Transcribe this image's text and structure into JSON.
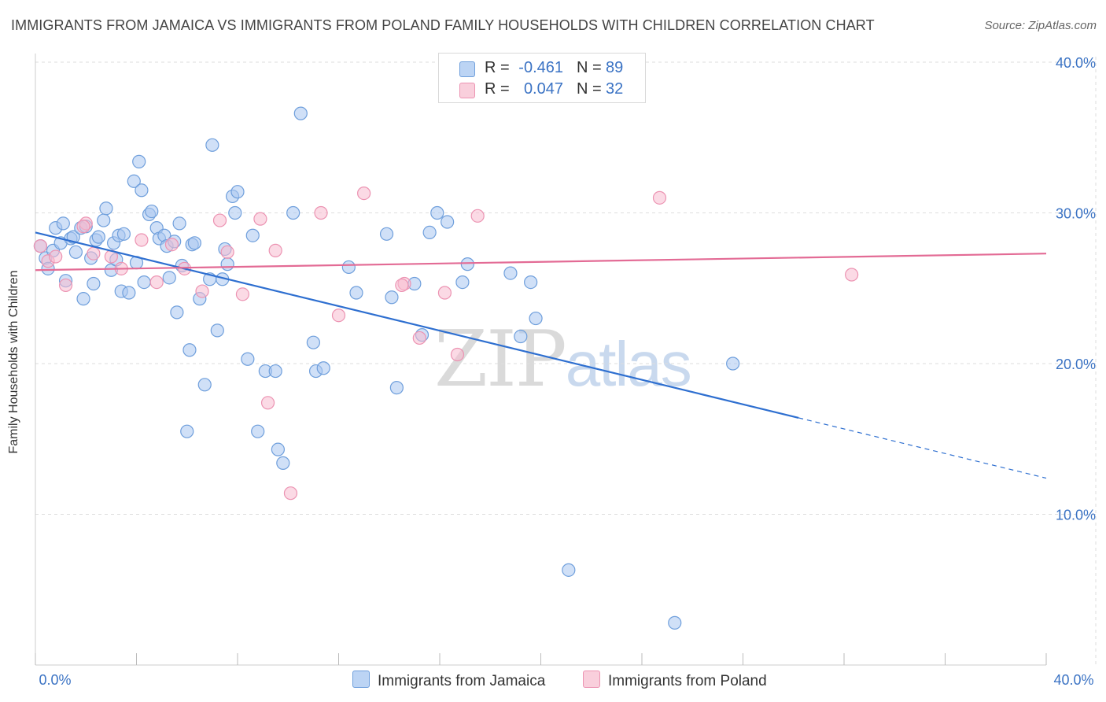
{
  "title": "IMMIGRANTS FROM JAMAICA VS IMMIGRANTS FROM POLAND FAMILY HOUSEHOLDS WITH CHILDREN CORRELATION CHART",
  "source": "Source: ZipAtlas.com",
  "watermark": {
    "zip": "ZIP",
    "atlas": "atlas"
  },
  "legend": {
    "rows": [
      {
        "r_label": "R =",
        "r_value": "-0.461",
        "n_label": "N =",
        "n_value": "89"
      },
      {
        "r_label": "R =",
        "r_value": "0.047",
        "n_label": "N =",
        "n_value": "32"
      }
    ]
  },
  "colors": {
    "jamaica_fill": "#a9c6f0",
    "jamaica_stroke": "#6f9fdc",
    "jamaica_line": "#2e6fd0",
    "poland_fill": "#f7bcd0",
    "poland_stroke": "#ec93b2",
    "poland_line": "#e36b95",
    "tick_label": "#3b73c4",
    "grid": "#dddddd"
  },
  "chart_data": {
    "type": "scatter",
    "title": "IMMIGRANTS FROM JAMAICA VS IMMIGRANTS FROM POLAND FAMILY HOUSEHOLDS WITH CHILDREN CORRELATION CHART",
    "xlabel": "",
    "ylabel": "Family Households with Children",
    "xlim": [
      0,
      40
    ],
    "ylim": [
      0,
      42
    ],
    "x_tick_labels": [
      {
        "value": 0,
        "label": "0.0%"
      },
      {
        "value": 40,
        "label": "40.0%"
      }
    ],
    "y_ticks": [
      {
        "value": 10,
        "label": "10.0%"
      },
      {
        "value": 20,
        "label": "20.0%"
      },
      {
        "value": 30,
        "label": "30.0%"
      },
      {
        "value": 40,
        "label": "40.0%"
      }
    ],
    "grid": true,
    "legend_position": "bottom",
    "series": [
      {
        "name": "Immigrants from Jamaica",
        "trend": {
          "x0": 0,
          "y0": 28.7,
          "x1": 30.2,
          "y1": 16.4,
          "dash_x1": 40,
          "dash_y1": 12.4
        },
        "points": [
          [
            0.2,
            27.8
          ],
          [
            0.4,
            27.0
          ],
          [
            0.5,
            26.3
          ],
          [
            0.7,
            27.5
          ],
          [
            0.8,
            29.0
          ],
          [
            1.0,
            28.0
          ],
          [
            1.1,
            29.3
          ],
          [
            1.2,
            25.5
          ],
          [
            1.4,
            28.3
          ],
          [
            1.5,
            28.4
          ],
          [
            1.6,
            27.4
          ],
          [
            1.8,
            29.0
          ],
          [
            1.9,
            24.3
          ],
          [
            2.0,
            29.1
          ],
          [
            2.2,
            27.0
          ],
          [
            2.3,
            25.3
          ],
          [
            2.4,
            28.2
          ],
          [
            2.5,
            28.4
          ],
          [
            2.7,
            29.5
          ],
          [
            2.8,
            30.3
          ],
          [
            3.0,
            26.2
          ],
          [
            3.1,
            28.0
          ],
          [
            3.2,
            26.9
          ],
          [
            3.3,
            28.5
          ],
          [
            3.4,
            24.8
          ],
          [
            3.5,
            28.6
          ],
          [
            3.7,
            24.7
          ],
          [
            3.9,
            32.1
          ],
          [
            4.0,
            26.7
          ],
          [
            4.1,
            33.4
          ],
          [
            4.2,
            31.5
          ],
          [
            4.3,
            25.4
          ],
          [
            4.5,
            29.9
          ],
          [
            4.6,
            30.1
          ],
          [
            4.8,
            29.0
          ],
          [
            4.9,
            28.3
          ],
          [
            5.1,
            28.5
          ],
          [
            5.2,
            27.8
          ],
          [
            5.3,
            25.7
          ],
          [
            5.5,
            28.1
          ],
          [
            5.6,
            23.4
          ],
          [
            5.7,
            29.3
          ],
          [
            5.8,
            26.5
          ],
          [
            6.1,
            20.9
          ],
          [
            6.2,
            27.9
          ],
          [
            6.3,
            28.0
          ],
          [
            6.5,
            24.3
          ],
          [
            6.7,
            18.6
          ],
          [
            6.9,
            25.6
          ],
          [
            7.0,
            34.5
          ],
          [
            7.2,
            22.2
          ],
          [
            7.4,
            25.6
          ],
          [
            7.5,
            27.6
          ],
          [
            7.6,
            26.6
          ],
          [
            7.8,
            31.1
          ],
          [
            7.9,
            30.0
          ],
          [
            8.0,
            31.4
          ],
          [
            8.4,
            20.3
          ],
          [
            8.6,
            28.5
          ],
          [
            8.8,
            15.5
          ],
          [
            9.1,
            19.5
          ],
          [
            9.5,
            19.5
          ],
          [
            9.6,
            14.3
          ],
          [
            9.8,
            13.4
          ],
          [
            10.2,
            30.0
          ],
          [
            10.5,
            36.6
          ],
          [
            11.0,
            21.4
          ],
          [
            11.1,
            19.5
          ],
          [
            11.4,
            19.7
          ],
          [
            12.4,
            26.4
          ],
          [
            12.7,
            24.7
          ],
          [
            13.9,
            28.6
          ],
          [
            14.1,
            24.4
          ],
          [
            14.3,
            18.4
          ],
          [
            15.0,
            25.3
          ],
          [
            15.3,
            21.9
          ],
          [
            15.6,
            28.7
          ],
          [
            15.9,
            30.0
          ],
          [
            16.3,
            29.4
          ],
          [
            16.9,
            25.4
          ],
          [
            17.1,
            26.6
          ],
          [
            18.8,
            26.0
          ],
          [
            19.2,
            21.8
          ],
          [
            19.6,
            25.4
          ],
          [
            19.8,
            23.0
          ],
          [
            21.1,
            6.3
          ],
          [
            25.3,
            2.8
          ],
          [
            27.6,
            20.0
          ],
          [
            6.0,
            15.5
          ]
        ]
      },
      {
        "name": "Immigrants from Poland",
        "trend": {
          "x0": 0,
          "y0": 26.2,
          "x1": 40,
          "y1": 27.3
        },
        "points": [
          [
            0.2,
            27.8
          ],
          [
            0.5,
            26.8
          ],
          [
            0.8,
            27.1
          ],
          [
            1.2,
            25.2
          ],
          [
            2.0,
            29.3
          ],
          [
            2.3,
            27.3
          ],
          [
            3.0,
            27.1
          ],
          [
            3.4,
            26.3
          ],
          [
            4.2,
            28.2
          ],
          [
            4.8,
            25.4
          ],
          [
            5.4,
            27.9
          ],
          [
            6.6,
            24.8
          ],
          [
            7.6,
            27.4
          ],
          [
            8.2,
            24.6
          ],
          [
            8.9,
            29.6
          ],
          [
            9.2,
            17.4
          ],
          [
            9.5,
            27.5
          ],
          [
            10.1,
            11.4
          ],
          [
            11.3,
            30.0
          ],
          [
            12.0,
            23.2
          ],
          [
            13.0,
            31.3
          ],
          [
            14.6,
            25.3
          ],
          [
            15.2,
            21.7
          ],
          [
            16.2,
            24.7
          ],
          [
            16.7,
            20.6
          ],
          [
            17.5,
            29.8
          ],
          [
            24.7,
            31.0
          ],
          [
            32.3,
            25.9
          ],
          [
            7.3,
            29.5
          ],
          [
            5.9,
            26.3
          ],
          [
            1.9,
            29.1
          ],
          [
            14.5,
            25.2
          ]
        ]
      }
    ]
  }
}
